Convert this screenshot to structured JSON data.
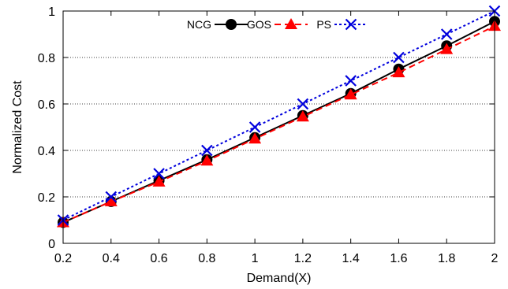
{
  "chart_data": {
    "type": "line",
    "title": "",
    "xlabel": "Demand(X)",
    "ylabel": "Normalized Cost",
    "xlim": [
      0.2,
      2
    ],
    "ylim": [
      0,
      1
    ],
    "x_ticks": [
      "0.2",
      "0.4",
      "0.6",
      "0.8",
      "1",
      "1.2",
      "1.4",
      "1.6",
      "1.8",
      "2"
    ],
    "y_ticks": [
      "0",
      "0.2",
      "0.4",
      "0.6",
      "0.8",
      "1"
    ],
    "grid": "horizontal-dotted",
    "legend_position": "top",
    "x": [
      0.2,
      0.4,
      0.6,
      0.8,
      1.0,
      1.2,
      1.4,
      1.6,
      1.8,
      2.0
    ],
    "series": [
      {
        "name": "NCG",
        "color": "#000000",
        "marker": "circle",
        "line_style": "solid",
        "values": [
          0.09,
          0.18,
          0.27,
          0.36,
          0.455,
          0.55,
          0.645,
          0.75,
          0.85,
          0.955
        ]
      },
      {
        "name": "GOS",
        "color": "#ff0000",
        "marker": "triangle",
        "line_style": "dashed",
        "values": [
          0.09,
          0.18,
          0.265,
          0.355,
          0.45,
          0.545,
          0.64,
          0.735,
          0.835,
          0.935
        ]
      },
      {
        "name": "PS",
        "color": "#0000dd",
        "marker": "x",
        "line_style": "dotted",
        "values": [
          0.1,
          0.2,
          0.3,
          0.4,
          0.5,
          0.6,
          0.7,
          0.8,
          0.9,
          1.0
        ]
      }
    ]
  }
}
